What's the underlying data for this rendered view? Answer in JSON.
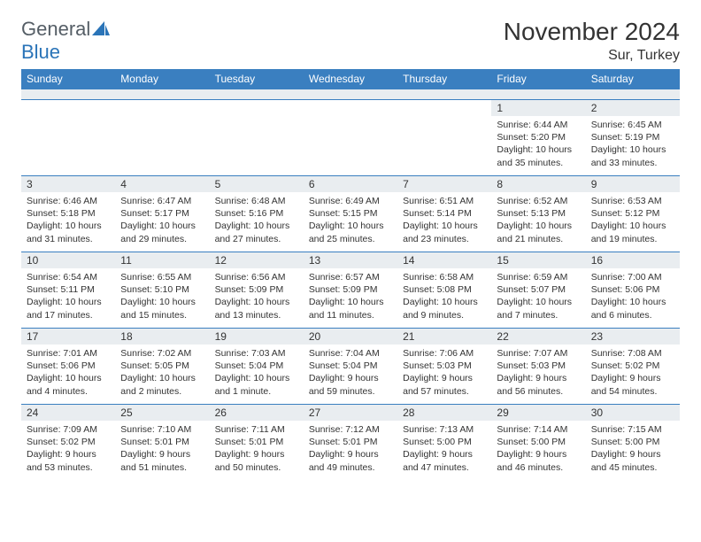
{
  "brand": {
    "text1": "General",
    "text2": "Blue"
  },
  "title": "November 2024",
  "subtitle": "Sur, Turkey",
  "colors": {
    "header_bg": "#3a7fc0",
    "header_text": "#ffffff",
    "daynum_bg": "#e9edf0",
    "border": "#3a7fc0",
    "body_text": "#333333",
    "brand_gray": "#555e66",
    "brand_blue": "#2a74b8"
  },
  "dayHeaders": [
    "Sunday",
    "Monday",
    "Tuesday",
    "Wednesday",
    "Thursday",
    "Friday",
    "Saturday"
  ],
  "weeks": [
    [
      {
        "n": "",
        "sr": "",
        "ss": "",
        "dl": ""
      },
      {
        "n": "",
        "sr": "",
        "ss": "",
        "dl": ""
      },
      {
        "n": "",
        "sr": "",
        "ss": "",
        "dl": ""
      },
      {
        "n": "",
        "sr": "",
        "ss": "",
        "dl": ""
      },
      {
        "n": "",
        "sr": "",
        "ss": "",
        "dl": ""
      },
      {
        "n": "1",
        "sr": "6:44 AM",
        "ss": "5:20 PM",
        "dl": "10 hours and 35 minutes."
      },
      {
        "n": "2",
        "sr": "6:45 AM",
        "ss": "5:19 PM",
        "dl": "10 hours and 33 minutes."
      }
    ],
    [
      {
        "n": "3",
        "sr": "6:46 AM",
        "ss": "5:18 PM",
        "dl": "10 hours and 31 minutes."
      },
      {
        "n": "4",
        "sr": "6:47 AM",
        "ss": "5:17 PM",
        "dl": "10 hours and 29 minutes."
      },
      {
        "n": "5",
        "sr": "6:48 AM",
        "ss": "5:16 PM",
        "dl": "10 hours and 27 minutes."
      },
      {
        "n": "6",
        "sr": "6:49 AM",
        "ss": "5:15 PM",
        "dl": "10 hours and 25 minutes."
      },
      {
        "n": "7",
        "sr": "6:51 AM",
        "ss": "5:14 PM",
        "dl": "10 hours and 23 minutes."
      },
      {
        "n": "8",
        "sr": "6:52 AM",
        "ss": "5:13 PM",
        "dl": "10 hours and 21 minutes."
      },
      {
        "n": "9",
        "sr": "6:53 AM",
        "ss": "5:12 PM",
        "dl": "10 hours and 19 minutes."
      }
    ],
    [
      {
        "n": "10",
        "sr": "6:54 AM",
        "ss": "5:11 PM",
        "dl": "10 hours and 17 minutes."
      },
      {
        "n": "11",
        "sr": "6:55 AM",
        "ss": "5:10 PM",
        "dl": "10 hours and 15 minutes."
      },
      {
        "n": "12",
        "sr": "6:56 AM",
        "ss": "5:09 PM",
        "dl": "10 hours and 13 minutes."
      },
      {
        "n": "13",
        "sr": "6:57 AM",
        "ss": "5:09 PM",
        "dl": "10 hours and 11 minutes."
      },
      {
        "n": "14",
        "sr": "6:58 AM",
        "ss": "5:08 PM",
        "dl": "10 hours and 9 minutes."
      },
      {
        "n": "15",
        "sr": "6:59 AM",
        "ss": "5:07 PM",
        "dl": "10 hours and 7 minutes."
      },
      {
        "n": "16",
        "sr": "7:00 AM",
        "ss": "5:06 PM",
        "dl": "10 hours and 6 minutes."
      }
    ],
    [
      {
        "n": "17",
        "sr": "7:01 AM",
        "ss": "5:06 PM",
        "dl": "10 hours and 4 minutes."
      },
      {
        "n": "18",
        "sr": "7:02 AM",
        "ss": "5:05 PM",
        "dl": "10 hours and 2 minutes."
      },
      {
        "n": "19",
        "sr": "7:03 AM",
        "ss": "5:04 PM",
        "dl": "10 hours and 1 minute."
      },
      {
        "n": "20",
        "sr": "7:04 AM",
        "ss": "5:04 PM",
        "dl": "9 hours and 59 minutes."
      },
      {
        "n": "21",
        "sr": "7:06 AM",
        "ss": "5:03 PM",
        "dl": "9 hours and 57 minutes."
      },
      {
        "n": "22",
        "sr": "7:07 AM",
        "ss": "5:03 PM",
        "dl": "9 hours and 56 minutes."
      },
      {
        "n": "23",
        "sr": "7:08 AM",
        "ss": "5:02 PM",
        "dl": "9 hours and 54 minutes."
      }
    ],
    [
      {
        "n": "24",
        "sr": "7:09 AM",
        "ss": "5:02 PM",
        "dl": "9 hours and 53 minutes."
      },
      {
        "n": "25",
        "sr": "7:10 AM",
        "ss": "5:01 PM",
        "dl": "9 hours and 51 minutes."
      },
      {
        "n": "26",
        "sr": "7:11 AM",
        "ss": "5:01 PM",
        "dl": "9 hours and 50 minutes."
      },
      {
        "n": "27",
        "sr": "7:12 AM",
        "ss": "5:01 PM",
        "dl": "9 hours and 49 minutes."
      },
      {
        "n": "28",
        "sr": "7:13 AM",
        "ss": "5:00 PM",
        "dl": "9 hours and 47 minutes."
      },
      {
        "n": "29",
        "sr": "7:14 AM",
        "ss": "5:00 PM",
        "dl": "9 hours and 46 minutes."
      },
      {
        "n": "30",
        "sr": "7:15 AM",
        "ss": "5:00 PM",
        "dl": "9 hours and 45 minutes."
      }
    ]
  ],
  "labels": {
    "sunrise": "Sunrise: ",
    "sunset": "Sunset: ",
    "daylight": "Daylight: "
  }
}
